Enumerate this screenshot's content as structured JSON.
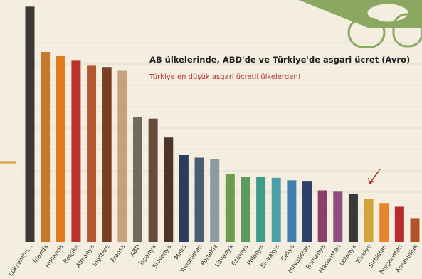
{
  "chart_data": {
    "type": "bar",
    "title": "AB ülkelerinde, ABD'de ve Türkiye'de asgari ücret (Avro)",
    "subtitle": "Türkiye en düşük asgari ücretli ülkelerden!",
    "categories": [
      "Lüksembu...",
      "İrlanda",
      "Hollanda",
      "Belçika",
      "Almanya",
      "İngiltere",
      "Fransa",
      "ABD",
      "İspanya",
      "Slovenya",
      "Malta",
      "Yunanistan",
      "Portekiz",
      "Litvanya",
      "Estonya",
      "Polonya",
      "Slovakya",
      "Çekya",
      "Hırvatistan",
      "Romanya",
      "Macaristan",
      "Letonya",
      "Türkiye",
      "Sırbistan",
      "Bulgaristan",
      "Arnavutluk"
    ],
    "values": [
      1870,
      1510,
      1480,
      1440,
      1400,
      1390,
      1360,
      990,
      980,
      830,
      690,
      670,
      660,
      540,
      520,
      520,
      510,
      490,
      480,
      410,
      400,
      380,
      340,
      310,
      280,
      190
    ],
    "colors": [
      "#3d3a36",
      "#c77a2c",
      "#e07b22",
      "#b7332b",
      "#b55630",
      "#7b3f25",
      "#c9a07c",
      "#6f6a60",
      "#6b4a3b",
      "#4e3428",
      "#2e3d5c",
      "#4c5d73",
      "#8d9aa0",
      "#6f9c4a",
      "#5c9a5e",
      "#3f9b8a",
      "#4a9fa8",
      "#3f7fb0",
      "#2d3f6b",
      "#8c3f6b",
      "#8d4f80",
      "#3a3a3a",
      "#d4a33a",
      "#e6852a",
      "#b62b2b",
      "#b25428"
    ],
    "ylim": [
      0,
      1900
    ]
  }
}
